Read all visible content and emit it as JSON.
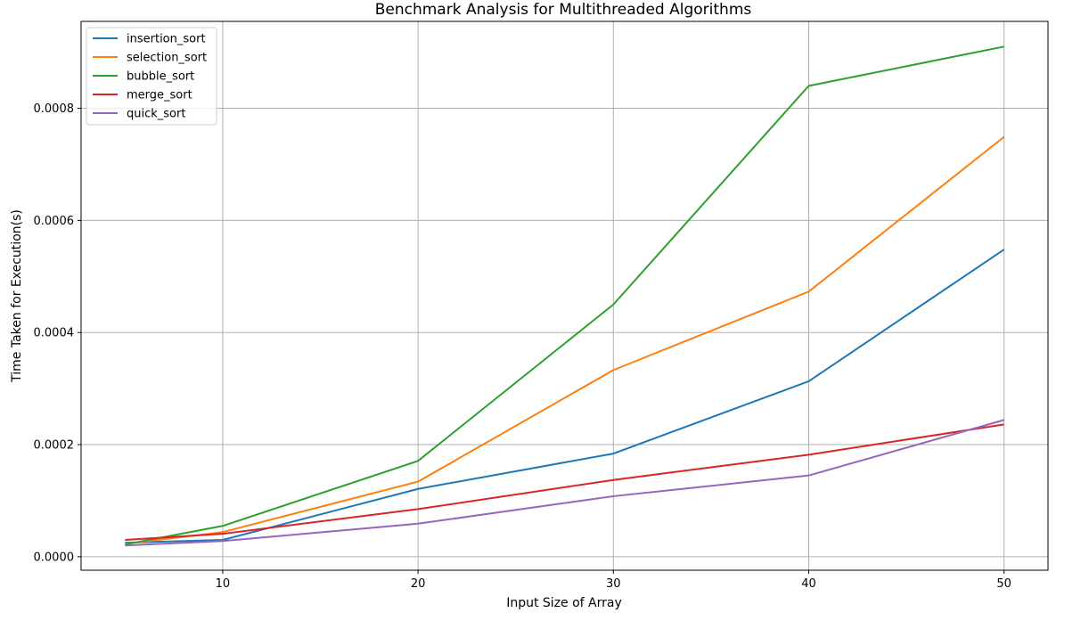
{
  "chart_data": {
    "type": "line",
    "title": "Benchmark Analysis for Multithreaded Algorithms",
    "xlabel": "Input Size of Array",
    "ylabel": "Time Taken for Execution(s)",
    "x": [
      5,
      10,
      20,
      30,
      40,
      50
    ],
    "xlim": [
      2.75,
      52.25
    ],
    "ylim": [
      -2.4e-05,
      0.000955
    ],
    "xticks": [
      10,
      20,
      30,
      40,
      50
    ],
    "xtick_labels": [
      "10",
      "20",
      "30",
      "40",
      "50"
    ],
    "yticks": [
      0,
      0.0002,
      0.0004,
      0.0006,
      0.0008
    ],
    "ytick_labels": [
      "0.0000",
      "0.0002",
      "0.0004",
      "0.0006",
      "0.0008"
    ],
    "grid": true,
    "legend_position": "top-left",
    "series": [
      {
        "name": "insertion_sort",
        "color": "#1f77b4",
        "values": [
          2.5e-05,
          3e-05,
          0.000121,
          0.000184,
          0.000313,
          0.000548
        ]
      },
      {
        "name": "selection_sort",
        "color": "#ff7f0e",
        "values": [
          2.3e-05,
          4.4e-05,
          0.000134,
          0.000333,
          0.000473,
          0.000749
        ]
      },
      {
        "name": "bubble_sort",
        "color": "#2ca02c",
        "values": [
          2.2e-05,
          5.5e-05,
          0.000171,
          0.00045,
          0.00084,
          0.00091
        ]
      },
      {
        "name": "merge_sort",
        "color": "#d62728",
        "values": [
          3e-05,
          4.1e-05,
          8.5e-05,
          0.000137,
          0.000182,
          0.000236
        ]
      },
      {
        "name": "quick_sort",
        "color": "#9467bd",
        "values": [
          2e-05,
          2.8e-05,
          5.9e-05,
          0.000108,
          0.000145,
          0.000244
        ]
      }
    ]
  }
}
